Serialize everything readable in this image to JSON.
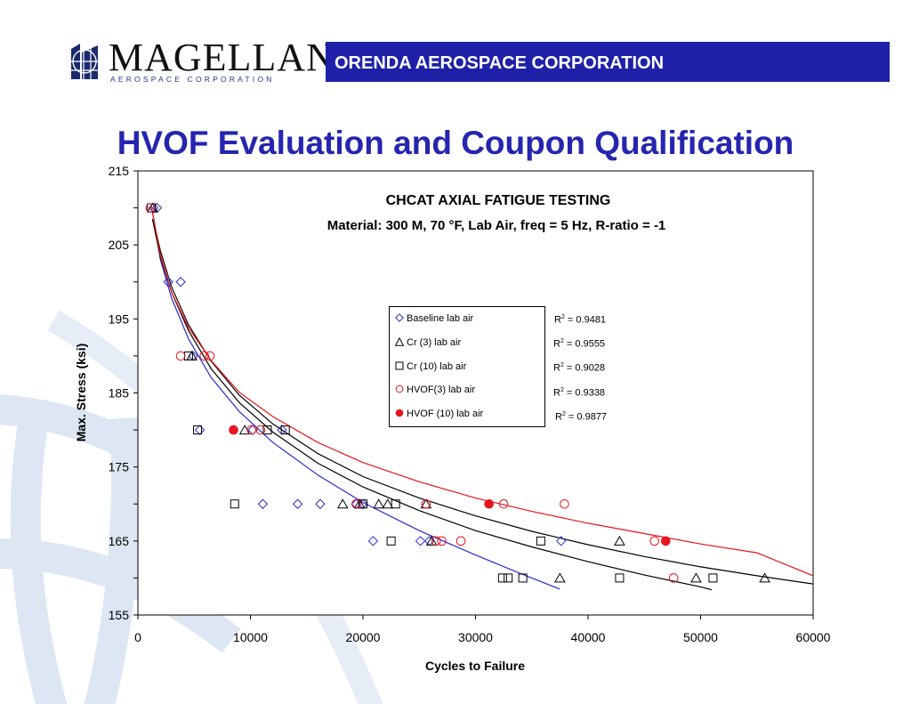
{
  "header": {
    "logo_word": "MAGELLAN",
    "logo_sub": "AEROSPACE CORPORATION",
    "banner_text": "ORENDA AEROSPACE CORPORATION",
    "banner_color": "#1e20a8"
  },
  "page_title": "HVOF Evaluation and Coupon Qualification",
  "colors": {
    "blue": "#2b2bd0",
    "black": "#000000",
    "red": "#e8141e",
    "title": "#2525b0"
  },
  "chart_data": {
    "type": "scatter",
    "title": "CHCAT AXIAL FATIGUE TESTING",
    "subtitle": "Material: 300 M, 70 °F, Lab Air, freq = 5 Hz, R-ratio = -1",
    "xlabel": "Cycles to Failure",
    "ylabel": "Max. Stress (ksi)",
    "xlim": [
      0,
      60000
    ],
    "ylim": [
      155,
      215
    ],
    "xticks": [
      "0",
      "10000",
      "20000",
      "30000",
      "40000",
      "50000",
      "60000"
    ],
    "yticks": [
      "155",
      "165",
      "175",
      "185",
      "195",
      "205",
      "215"
    ],
    "legend_position": "center",
    "series": [
      {
        "name": "Baseline lab air",
        "marker": "diamond",
        "color": "#2b2bd0",
        "r2": "0.9481",
        "points": [
          [
            1400,
            210
          ],
          [
            1700,
            210
          ],
          [
            2700,
            200
          ],
          [
            3800,
            200
          ],
          [
            4900,
            190
          ],
          [
            5500,
            180
          ],
          [
            11100,
            170
          ],
          [
            14200,
            170
          ],
          [
            16200,
            170
          ],
          [
            19400,
            170
          ],
          [
            20900,
            165
          ],
          [
            25100,
            165
          ],
          [
            25900,
            165
          ],
          [
            37600,
            165
          ],
          [
            10200,
            180
          ],
          [
            12800,
            180
          ],
          [
            20000,
            170
          ]
        ],
        "trend": [
          [
            1300,
            209.5
          ],
          [
            2000,
            203
          ],
          [
            3000,
            197.8
          ],
          [
            4500,
            192.3
          ],
          [
            6500,
            187.1
          ],
          [
            9000,
            182.5
          ],
          [
            12000,
            178.3
          ],
          [
            16000,
            173.9
          ],
          [
            20000,
            170.2
          ],
          [
            25000,
            166.4
          ],
          [
            30000,
            163.1
          ],
          [
            34000,
            160.6
          ],
          [
            37500,
            158.5
          ]
        ]
      },
      {
        "name": "Cr (3) lab air",
        "marker": "triangle",
        "color": "#000000",
        "r2": "0.9555",
        "points": [
          [
            1300,
            210
          ],
          [
            4800,
            190
          ],
          [
            9500,
            180
          ],
          [
            18200,
            170
          ],
          [
            19700,
            170
          ],
          [
            21400,
            170
          ],
          [
            22200,
            170
          ],
          [
            25600,
            170
          ],
          [
            26100,
            165
          ],
          [
            37500,
            160
          ],
          [
            42800,
            165
          ],
          [
            49600,
            160
          ],
          [
            55700,
            160
          ]
        ],
        "trend": [
          [
            1300,
            208.5
          ],
          [
            2000,
            203.3
          ],
          [
            3000,
            198.6
          ],
          [
            4500,
            193.4
          ],
          [
            6500,
            188.3
          ],
          [
            9000,
            183.7
          ],
          [
            12000,
            179.7
          ],
          [
            16000,
            175.5
          ],
          [
            20000,
            172.3
          ],
          [
            25000,
            169.1
          ],
          [
            30000,
            166.4
          ],
          [
            35000,
            164.2
          ],
          [
            40000,
            162.2
          ],
          [
            45000,
            160.4
          ],
          [
            50000,
            158.8
          ],
          [
            51000,
            158.4
          ]
        ]
      },
      {
        "name": "Cr (10) lab air",
        "marker": "square",
        "color": "#000000",
        "r2": "0.9028",
        "points": [
          [
            1200,
            210
          ],
          [
            4500,
            190
          ],
          [
            5300,
            180
          ],
          [
            8600,
            170
          ],
          [
            11500,
            180
          ],
          [
            13100,
            180
          ],
          [
            20000,
            170
          ],
          [
            22500,
            165
          ],
          [
            22900,
            170
          ],
          [
            35800,
            165
          ],
          [
            32400,
            160
          ],
          [
            32900,
            160
          ],
          [
            34200,
            160
          ],
          [
            42800,
            160
          ],
          [
            51100,
            160
          ]
        ],
        "trend": [
          [
            1500,
            207.5
          ],
          [
            2000,
            204.2
          ],
          [
            3000,
            199.3
          ],
          [
            4500,
            194.2
          ],
          [
            6500,
            189.3
          ],
          [
            9000,
            184.7
          ],
          [
            12000,
            180.8
          ],
          [
            16000,
            176.8
          ],
          [
            20000,
            173.7
          ],
          [
            25000,
            170.8
          ],
          [
            30000,
            168.4
          ],
          [
            35000,
            166.3
          ],
          [
            40000,
            164.5
          ],
          [
            45000,
            162.9
          ],
          [
            50000,
            161.5
          ],
          [
            55000,
            160.3
          ],
          [
            60000,
            159.2
          ]
        ]
      },
      {
        "name": "HVOF(3) lab air",
        "marker": "circle-open",
        "color": "#e8141e",
        "r2": "0.9338",
        "points": [
          [
            1100,
            210
          ],
          [
            3800,
            190
          ],
          [
            5900,
            190
          ],
          [
            6400,
            190
          ],
          [
            10100,
            180
          ],
          [
            10900,
            180
          ],
          [
            19400,
            170
          ],
          [
            25600,
            170
          ],
          [
            26500,
            165
          ],
          [
            27000,
            165
          ],
          [
            28700,
            165
          ],
          [
            32500,
            170
          ],
          [
            37900,
            170
          ],
          [
            45900,
            165
          ],
          [
            47600,
            160
          ]
        ],
        "trend": [
          [
            1200,
            210.2
          ],
          [
            2000,
            203.6
          ],
          [
            3000,
            198.6
          ],
          [
            4500,
            193.8
          ],
          [
            6500,
            189.4
          ],
          [
            9000,
            185.1
          ],
          [
            12000,
            181.8
          ],
          [
            16000,
            178.3
          ],
          [
            20000,
            175.6
          ],
          [
            25000,
            173.0
          ],
          [
            30000,
            170.8
          ],
          [
            35000,
            169.0
          ],
          [
            40000,
            167.4
          ],
          [
            45000,
            166.0
          ],
          [
            50000,
            164.6
          ],
          [
            55000,
            163.4
          ],
          [
            60000,
            160.3
          ]
        ]
      },
      {
        "name": "HVOF (10) lab air",
        "marker": "circle-filled",
        "color": "#e8141e",
        "r2": "0.9877",
        "points": [
          [
            8500,
            180
          ],
          [
            31200,
            170
          ],
          [
            46900,
            165
          ]
        ],
        "trend": []
      }
    ]
  }
}
